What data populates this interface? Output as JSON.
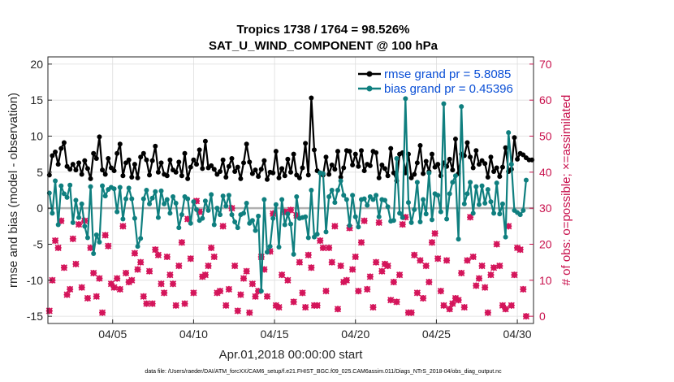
{
  "chart_data": {
    "type": "line",
    "title": "Tropics 1738 / 1764 = 98.526%",
    "subtitle": "SAT_U_WIND_COMPONENT @ 100 hPa",
    "xlabel": "Apr.01,2018 00:00:00 start",
    "ylabel": "rmse and bias (model - observation)",
    "ylabel_right": "# of obs: o=possible; ×=assimilated",
    "xlim": [
      1,
      31
    ],
    "ylim": [
      -16,
      21
    ],
    "ylim_right": [
      -2,
      72
    ],
    "x_ticks": [
      5,
      10,
      15,
      20,
      25,
      30
    ],
    "x_tick_labels": [
      "04/05",
      "04/10",
      "04/15",
      "04/20",
      "04/25",
      "04/30"
    ],
    "y_ticks": [
      -15,
      -10,
      -5,
      0,
      5,
      10,
      15,
      20
    ],
    "y_tick_labels": [
      "-15",
      "-10",
      "-5",
      "0",
      "5",
      "10",
      "15",
      "20"
    ],
    "y_right_ticks": [
      0,
      10,
      20,
      30,
      40,
      50,
      60,
      70
    ],
    "y_right_tick_labels": [
      "0",
      "10",
      "20",
      "30",
      "40",
      "50",
      "60",
      "70"
    ],
    "grid": true,
    "legend_position": "top-right",
    "footnote": "data file: /Users/raeder/DAI/ATM_forcXX/CAM6_setup/f.e21.FHIST_BGC.f09_025.CAM6assim.011/Diags_NTrS_2018-04/obs_diag_output.nc",
    "colors": {
      "rmse": "#000000",
      "bias": "#0f7f7f",
      "obs": "#d4145a",
      "legend_text": "#0a4fd6",
      "zero_line": "#b0b0b0"
    },
    "series": [
      {
        "name": "rmse grand pr = 5.8085",
        "axis": "left",
        "values": [
          4.6,
          7.3,
          7.8,
          6.1,
          8.3,
          9.1,
          5.8,
          5.4,
          6.1,
          5.3,
          6.3,
          4.7,
          6.6,
          5.5,
          4.1,
          7.6,
          6.9,
          9.9,
          5.3,
          4.7,
          6.9,
          5.6,
          5.2,
          7.6,
          8.9,
          4.5,
          6.3,
          6.7,
          4.3,
          6.1,
          4.2,
          7.1,
          7.6,
          6.7,
          4.6,
          6.6,
          8.6,
          5.0,
          6.3,
          4.7,
          4.5,
          6.7,
          5.3,
          5.0,
          6.4,
          4.5,
          7.6,
          4.1,
          5.7,
          6.7,
          6.1,
          8.1,
          5.5,
          9.3,
          5.6,
          5.9,
          5.4,
          4.7,
          5.1,
          6.7,
          4.3,
          5.8,
          6.9,
          5.1,
          5.7,
          4.1,
          6.3,
          8.9,
          6.4,
          4.8,
          5.3,
          4.4,
          5.4,
          6.6,
          4.0,
          5.0,
          4.9,
          7.9,
          4.2,
          5.5,
          4.5,
          6.8,
          5.0,
          7.5,
          4.6,
          4.2,
          5.6,
          9.0,
          4.6,
          15.3,
          8.1,
          5.2,
          4.9,
          4.6,
          7.1,
          4.7,
          6.0,
          5.4,
          7.9,
          4.3,
          5.6,
          8.0,
          7.9,
          6.0,
          7.5,
          5.8,
          8.0,
          5.2,
          6.1,
          5.9,
          7.9,
          7.7,
          4.2,
          6.0,
          5.5,
          4.5,
          8.3,
          4.9,
          3.8,
          7.5,
          7.7,
          4.9,
          7.5,
          4.2,
          4.7,
          6.3,
          8.7,
          4.8,
          6.5,
          5.1,
          7.5,
          5.7,
          6.1,
          4.5,
          6.3,
          5.8,
          6.8,
          5.3,
          9.6,
          4.8,
          7.5,
          7.3,
          9.1,
          7.1,
          5.6,
          8.0,
          6.1,
          6.6,
          6.2,
          4.3,
          7.1,
          5.1,
          5.6,
          4.4,
          5.7,
          8.4,
          5.1,
          5.4,
          9.8,
          6.8,
          7.6,
          7.4,
          7.0,
          6.7,
          6.7
        ]
      },
      {
        "name": "bias grand pr = 0.45396",
        "axis": "left",
        "values": [
          2.1,
          -0.7,
          3.8,
          -2.3,
          3.1,
          2.0,
          1.5,
          3.2,
          -2.0,
          1.1,
          -1.3,
          0.6,
          -2.5,
          -4.1,
          3.0,
          -6.3,
          -3.7,
          -4.7,
          3.1,
          1.7,
          2.6,
          2.9,
          2.7,
          -0.5,
          2.9,
          -1.5,
          1.3,
          2.8,
          1.3,
          -1.4,
          -5.3,
          -4.2,
          1.3,
          2.5,
          0.6,
          1.4,
          2.3,
          -1.3,
          2.4,
          0.6,
          1.2,
          -0.7,
          1.6,
          0.7,
          -2.7,
          -0.9,
          1.6,
          1.3,
          -2.1,
          0.9,
          -0.2,
          -1.7,
          -1.4,
          1.0,
          -0.3,
          1.9,
          -2.3,
          0.0,
          -0.9,
          1.7,
          0.3,
          1.8,
          -0.9,
          -1.9,
          -2.7,
          -0.9,
          -0.7,
          0.7,
          -2.1,
          -1.7,
          -3.1,
          -1.1,
          -11.5,
          1.2,
          -6.1,
          -5.3,
          -1.4,
          0.5,
          -5.4,
          1.2,
          -2.3,
          -0.8,
          -2.2,
          -6.4,
          1.6,
          -1.4,
          -1.3,
          -1.2,
          -4.1,
          2.5,
          -4.0,
          -3.6,
          4.9,
          4.8,
          -3.3,
          1.6,
          2.5,
          0.8,
          2.5,
          3.8,
          1.8,
          1.2,
          -2.4,
          1.8,
          -1.2,
          -2.6,
          1.2,
          1.3,
          0.4,
          1.6,
          1.2,
          1.8,
          -1.2,
          1.2,
          1.1,
          0.2,
          -1.8,
          -1.7,
          6.9,
          -0.7,
          -1.3,
          15.2,
          0.8,
          -2.0,
          -0.2,
          3.6,
          -1.9,
          1.2,
          -0.8,
          4.9,
          -1.6,
          2.0,
          1.8,
          -0.5,
          14.5,
          -1.5,
          2.0,
          3.6,
          4.5,
          -4.3,
          14.1,
          0.6,
          2.0,
          3.6,
          -0.7,
          3.0,
          0.5,
          3.1,
          0.7,
          2.6,
          0.9,
          -0.7,
          3.5,
          -0.8,
          0.6,
          -4.0,
          10.5,
          6.1,
          -0.3,
          -0.6,
          -0.9,
          -0.3,
          3.9
        ]
      },
      {
        "name": "# of obs (possible)",
        "axis": "right",
        "values": [
          1.5,
          10.0,
          21.0,
          19.0,
          26.5,
          13.5,
          6.0,
          7.5,
          21.5,
          14.5,
          25.5,
          8.0,
          26.5,
          5.0,
          19.0,
          12.0,
          5.5,
          10.5,
          1.0,
          22.5,
          19.5,
          9.0,
          8.0,
          10.5,
          7.5,
          25.0,
          12.0,
          9.5,
          10.0,
          17.5,
          13.0,
          15.0,
          5.5,
          3.5,
          12.5,
          3.5,
          18.5,
          17.0,
          9.0,
          6.5,
          16.5,
          11.5,
          9.0,
          3.0,
          14.0,
          20.5,
          3.5,
          27.0,
          16.0,
          6.5,
          32.0,
          29.0,
          11.0,
          11.5,
          14.0,
          19.0,
          16.5,
          6.5,
          7.0,
          25.0,
          3.0,
          7.5,
          30.0,
          14.0,
          1.5,
          6.0,
          10.5,
          12.5,
          1.0,
          9.0,
          5.5,
          7.0,
          16.5,
          13.0,
          5.5,
          18.0,
          28.5,
          3.0,
          2.5,
          11.5,
          29.0,
          10.0,
          29.5,
          4.0,
          28.0,
          15.0,
          6.5,
          2.5,
          17.0,
          13.5,
          3.0,
          3.0,
          21.0,
          19.0,
          7.0,
          19.0,
          15.0,
          25.0,
          2.0,
          14.0,
          9.5,
          10.0,
          24.5,
          13.0,
          16.5,
          7.0,
          20.5,
          26.5,
          7.5,
          11.0,
          2.5,
          15.0,
          26.0,
          12.5,
          14.5,
          14.0,
          4.5,
          9.5,
          4.0,
          11.5,
          25.5,
          27.5,
          1.0,
          1.0,
          17.0,
          6.5,
          15.5,
          5.0,
          14.0,
          9.5,
          20.5,
          23.0,
          16.0,
          7.0,
          3.0,
          15.5,
          2.0,
          3.5,
          5.0,
          4.5,
          12.0,
          2.5,
          15.5,
          27.5,
          16.5,
          8.5,
          10.5,
          14.0,
          8.0,
          1.0,
          11.5,
          13.5,
          20.0,
          14.0,
          3.0,
          2.0,
          25.0,
          3.0,
          11.5,
          19.0,
          18.5,
          7.5,
          0.0
        ]
      },
      {
        "name": "# of obs (assimilated)",
        "axis": "right",
        "values": [
          1.5,
          10.0,
          21.0,
          19.0,
          26.5,
          13.5,
          6.0,
          7.5,
          21.5,
          14.5,
          25.5,
          8.0,
          26.5,
          5.0,
          19.0,
          12.0,
          5.5,
          10.5,
          1.0,
          22.5,
          19.5,
          9.0,
          8.0,
          10.5,
          7.5,
          25.0,
          12.0,
          9.5,
          10.0,
          17.5,
          13.0,
          15.0,
          5.5,
          3.5,
          12.5,
          3.5,
          18.5,
          17.0,
          9.0,
          6.5,
          16.5,
          11.5,
          9.0,
          3.0,
          14.0,
          20.5,
          3.5,
          27.0,
          16.0,
          6.5,
          32.0,
          29.0,
          11.0,
          11.5,
          14.0,
          19.0,
          16.5,
          6.5,
          7.0,
          25.0,
          3.0,
          7.5,
          30.0,
          14.0,
          1.5,
          6.0,
          10.5,
          12.5,
          1.0,
          9.0,
          5.5,
          7.0,
          16.5,
          13.0,
          5.5,
          18.0,
          28.5,
          3.0,
          2.5,
          11.5,
          29.0,
          10.0,
          29.5,
          4.0,
          28.0,
          15.0,
          6.5,
          2.5,
          17.0,
          13.5,
          3.0,
          3.0,
          21.0,
          19.0,
          7.0,
          19.0,
          15.0,
          25.0,
          2.0,
          14.0,
          9.5,
          10.0,
          24.5,
          13.0,
          16.5,
          7.0,
          20.5,
          26.5,
          7.5,
          11.0,
          2.5,
          15.0,
          26.0,
          12.5,
          14.5,
          14.0,
          4.5,
          9.5,
          4.0,
          11.5,
          25.5,
          27.5,
          1.0,
          1.0,
          17.0,
          6.5,
          15.5,
          5.0,
          14.0,
          9.5,
          20.5,
          23.0,
          16.0,
          7.0,
          3.0,
          15.5,
          2.0,
          3.5,
          5.0,
          4.5,
          12.0,
          2.5,
          15.5,
          27.5,
          16.5,
          8.5,
          10.5,
          14.0,
          8.0,
          1.0,
          11.5,
          13.5,
          20.0,
          14.0,
          3.0,
          2.0,
          25.0,
          3.0,
          11.5,
          19.0,
          18.5,
          7.5,
          0.0
        ]
      }
    ]
  }
}
